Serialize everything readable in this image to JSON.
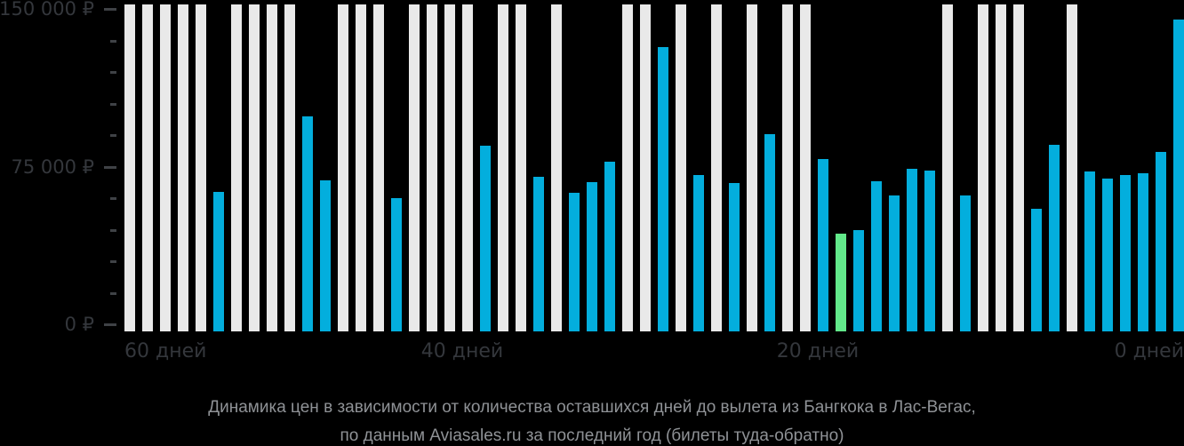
{
  "chart_data": {
    "type": "bar",
    "title": "Динамика цен в зависимости от количества оставшихся дней до вылета из Бангкока в Лас-Вегас,",
    "subtitle": "по данным Aviasales.ru за последний год (билеты туда-обратно)",
    "x_axis": {
      "labels": [
        "60 дней",
        "40 дней",
        "20 дней",
        "0 дней"
      ]
    },
    "y_axis": {
      "labels": [
        "150 000 ₽",
        "75 000 ₽",
        "0 ₽"
      ],
      "max": 150000,
      "minor_tick_step": 15000,
      "major_tick_step": 75000,
      "ylim": [
        0,
        150000
      ]
    },
    "colors": {
      "background": "#000000",
      "bar_no_data": "#e9e9e9",
      "bar_price": "#03aedd",
      "bar_lowest_price": "#62e98a",
      "axis_text": "#34373c",
      "caption_text": "#8f9296"
    },
    "bars": [
      {
        "day": 60,
        "price": null
      },
      {
        "day": 59,
        "price": null
      },
      {
        "day": 58,
        "price": null
      },
      {
        "day": 57,
        "price": null
      },
      {
        "day": 56,
        "price": null
      },
      {
        "day": 55,
        "price": 63000
      },
      {
        "day": 54,
        "price": null
      },
      {
        "day": 53,
        "price": null
      },
      {
        "day": 52,
        "price": null
      },
      {
        "day": 51,
        "price": null
      },
      {
        "day": 50,
        "price": 99000
      },
      {
        "day": 49,
        "price": 68500
      },
      {
        "day": 48,
        "price": null
      },
      {
        "day": 47,
        "price": null
      },
      {
        "day": 46,
        "price": null
      },
      {
        "day": 45,
        "price": 60000
      },
      {
        "day": 44,
        "price": null
      },
      {
        "day": 43,
        "price": null
      },
      {
        "day": 42,
        "price": null
      },
      {
        "day": 41,
        "price": null
      },
      {
        "day": 40,
        "price": 85000
      },
      {
        "day": 39,
        "price": null
      },
      {
        "day": 38,
        "price": null
      },
      {
        "day": 37,
        "price": 70000
      },
      {
        "day": 36,
        "price": null
      },
      {
        "day": 35,
        "price": 62500
      },
      {
        "day": 34,
        "price": 67500
      },
      {
        "day": 33,
        "price": 77500
      },
      {
        "day": 32,
        "price": null
      },
      {
        "day": 31,
        "price": null
      },
      {
        "day": 30,
        "price": 132000
      },
      {
        "day": 29,
        "price": null
      },
      {
        "day": 28,
        "price": 71000
      },
      {
        "day": 27,
        "price": null
      },
      {
        "day": 26,
        "price": 67000
      },
      {
        "day": 25,
        "price": null
      },
      {
        "day": 24,
        "price": 90500
      },
      {
        "day": 23,
        "price": null
      },
      {
        "day": 22,
        "price": null
      },
      {
        "day": 21,
        "price": 78500
      },
      {
        "day": 20,
        "price": 43000,
        "lowest": true
      },
      {
        "day": 19,
        "price": 45000
      },
      {
        "day": 18,
        "price": 68000
      },
      {
        "day": 17,
        "price": 61500
      },
      {
        "day": 16,
        "price": 74000
      },
      {
        "day": 15,
        "price": 73000
      },
      {
        "day": 14,
        "price": null
      },
      {
        "day": 13,
        "price": 61500
      },
      {
        "day": 12,
        "price": null
      },
      {
        "day": 11,
        "price": null
      },
      {
        "day": 10,
        "price": null
      },
      {
        "day": 9,
        "price": 55000
      },
      {
        "day": 8,
        "price": 85500
      },
      {
        "day": 7,
        "price": null
      },
      {
        "day": 6,
        "price": 72500
      },
      {
        "day": 5,
        "price": 69500
      },
      {
        "day": 4,
        "price": 71000
      },
      {
        "day": 3,
        "price": 72000
      },
      {
        "day": 2,
        "price": 82000
      },
      {
        "day": 1,
        "price": 145000
      }
    ]
  }
}
